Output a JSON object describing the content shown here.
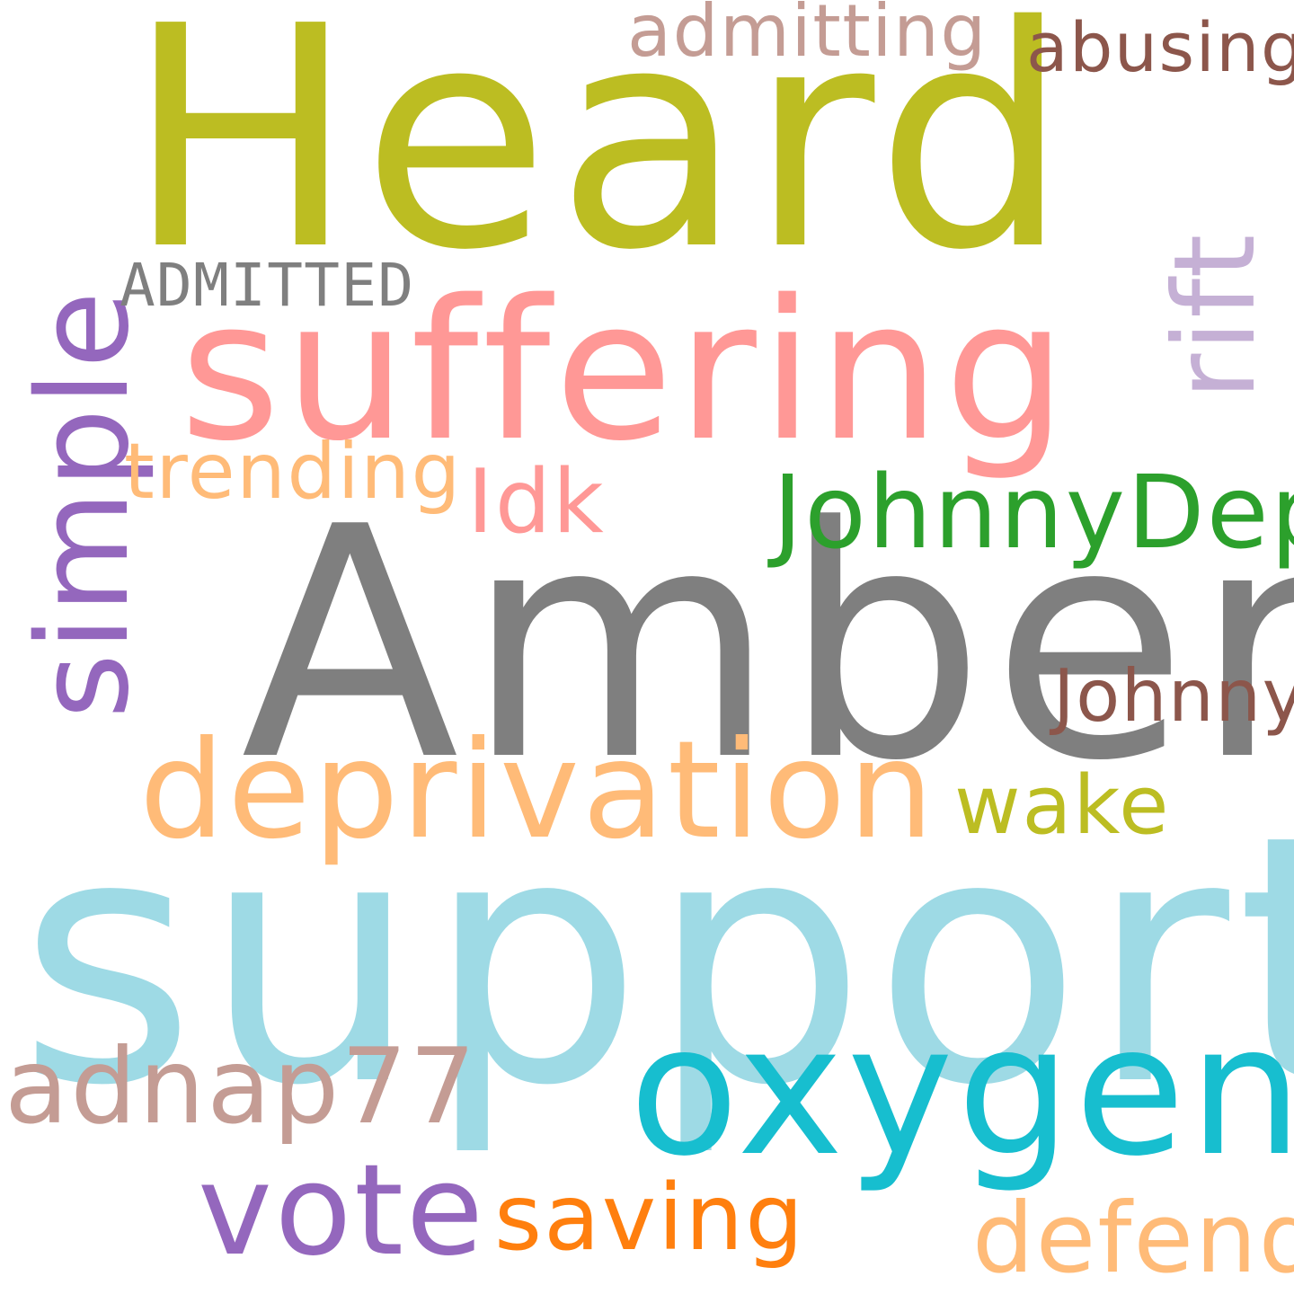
{
  "words": [
    {
      "key": "heard",
      "text": "Heard",
      "color": "#bcbd22",
      "rotated": false
    },
    {
      "key": "amber",
      "text": "Amber",
      "color": "#7f7f7f",
      "rotated": false
    },
    {
      "key": "support",
      "text": "support",
      "color": "#9edae5",
      "rotated": false
    },
    {
      "key": "suffering",
      "text": "suffering",
      "color": "#ff9896",
      "rotated": false
    },
    {
      "key": "oxygen",
      "text": "oxygen",
      "color": "#17becf",
      "rotated": false
    },
    {
      "key": "deprivation",
      "text": "deprivation",
      "color": "#ffbb78",
      "rotated": false
    },
    {
      "key": "simple",
      "text": "simple",
      "color": "#9467bd",
      "rotated": true
    },
    {
      "key": "rift",
      "text": "rift",
      "color": "#c5b0d5",
      "rotated": true
    },
    {
      "key": "vote",
      "text": "vote",
      "color": "#9467bd",
      "rotated": false
    },
    {
      "key": "johnnydepp",
      "text": "JohnnyDepp",
      "color": "#2ca02c",
      "rotated": false
    },
    {
      "key": "adnap",
      "text": "adnap77",
      "color": "#c49c94",
      "rotated": false
    },
    {
      "key": "defend",
      "text": "defend",
      "color": "#ffbb78",
      "rotated": false
    },
    {
      "key": "saving",
      "text": "saving",
      "color": "#ff7f0e",
      "rotated": false
    },
    {
      "key": "idk",
      "text": "Idk",
      "color": "#ff9896",
      "rotated": false
    },
    {
      "key": "wake",
      "text": "wake",
      "color": "#bcbd22",
      "rotated": false
    },
    {
      "key": "trending",
      "text": "trending",
      "color": "#ffbb78",
      "rotated": false
    },
    {
      "key": "johnny",
      "text": "Johnny",
      "color": "#8c564b",
      "rotated": false
    },
    {
      "key": "admitting",
      "text": "admitting",
      "color": "#c49c94",
      "rotated": false
    },
    {
      "key": "abusing",
      "text": "abusing",
      "color": "#8c564b",
      "rotated": false
    },
    {
      "key": "admitted",
      "text": "ADMITTED",
      "color": "#7f7f7f",
      "rotated": false
    }
  ]
}
